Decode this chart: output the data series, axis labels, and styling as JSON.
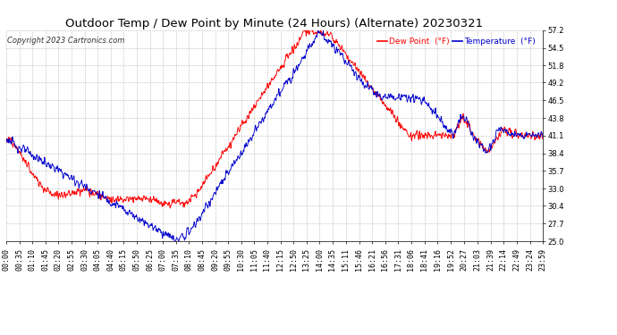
{
  "title": "Outdoor Temp / Dew Point by Minute (24 Hours) (Alternate) 20230321",
  "copyright": "Copyright 2023 Cartronics.com",
  "legend_dew": "Dew Point  (°F)",
  "legend_temp": "Temperature  (°F)",
  "dew_color": "#ff0000",
  "temp_color": "#0000cc",
  "background_color": "#ffffff",
  "grid_color": "#bbbbbb",
  "ylim": [
    25.0,
    57.2
  ],
  "yticks": [
    25.0,
    27.7,
    30.4,
    33.0,
    35.7,
    38.4,
    41.1,
    43.8,
    46.5,
    49.2,
    51.8,
    54.5,
    57.2
  ],
  "title_fontsize": 9.5,
  "tick_fontsize": 6.0,
  "x_tick_labels": [
    "00:00",
    "00:35",
    "01:10",
    "01:45",
    "02:20",
    "02:55",
    "03:30",
    "04:05",
    "04:40",
    "05:15",
    "05:50",
    "06:25",
    "07:00",
    "07:35",
    "08:10",
    "08:45",
    "09:20",
    "09:55",
    "10:30",
    "11:05",
    "11:40",
    "12:15",
    "12:50",
    "13:25",
    "14:00",
    "14:35",
    "15:11",
    "15:46",
    "16:21",
    "16:56",
    "17:31",
    "18:06",
    "18:41",
    "19:16",
    "19:52",
    "20:27",
    "21:03",
    "21:39",
    "22:14",
    "22:49",
    "23:24",
    "23:59"
  ]
}
